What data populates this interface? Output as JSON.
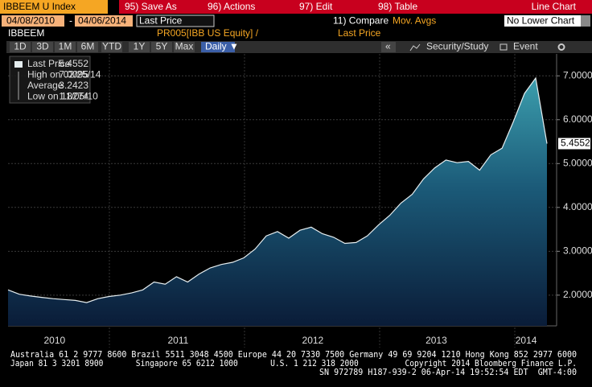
{
  "toolbar": {
    "security": "IBBEEM U Index",
    "buttons": [
      "95) Save As",
      "96) Actions",
      "97) Edit",
      "98) Table"
    ],
    "view": "Line Chart"
  },
  "settings": {
    "start_date": "04/08/2010",
    "date_separator": "-",
    "end_date": "04/06/2014",
    "field": "Last Price",
    "compare": "11) Compare",
    "moving_averages": "Mov. Avgs",
    "lower_chart": "No Lower Chart"
  },
  "info": {
    "ticker": "IBBEEM",
    "source": "PR005[IBB US Equity] /",
    "field": "Last Price"
  },
  "ranges": {
    "buttons": [
      "1D",
      "3D",
      "1M",
      "6M",
      "YTD",
      "1Y",
      "5Y",
      "Max"
    ],
    "frequency": "Daily ▼",
    "collapse": "«",
    "study": "Security/Study",
    "event": "Event"
  },
  "chart_data": {
    "type": "area",
    "legend": [
      {
        "label": "Last Price",
        "value": 5.4552
      },
      {
        "label": "High on 02/25/14",
        "value": 7.0095
      },
      {
        "label": "Average",
        "value": 3.2423
      },
      {
        "label": "Low on 11/05/10",
        "value": 1.8274
      }
    ],
    "categories": [
      null,
      null,
      null,
      null,
      "2010",
      null,
      null,
      null,
      null,
      null,
      null,
      null,
      null,
      null,
      null,
      "2011",
      null,
      null,
      null,
      null,
      null,
      null,
      null,
      null,
      null,
      null,
      null,
      "2012",
      null,
      null,
      null,
      null,
      null,
      null,
      null,
      null,
      null,
      null,
      "2013",
      null,
      null,
      null,
      null,
      null,
      null,
      null,
      "2014",
      null,
      null
    ],
    "series": [
      {
        "name": "Last Price",
        "color": "#e6eef0",
        "values": [
          2.12,
          2.02,
          1.98,
          1.95,
          1.92,
          1.9,
          1.88,
          1.83,
          1.92,
          1.97,
          2.0,
          2.05,
          2.12,
          2.3,
          2.25,
          2.42,
          2.3,
          2.48,
          2.62,
          2.7,
          2.75,
          2.85,
          3.05,
          3.35,
          3.45,
          3.3,
          3.48,
          3.55,
          3.4,
          3.32,
          3.18,
          3.2,
          3.35,
          3.6,
          3.82,
          4.1,
          4.3,
          4.65,
          4.9,
          5.08,
          5.02,
          5.05,
          4.85,
          5.2,
          5.35,
          5.95,
          6.6,
          6.95,
          5.4552
        ]
      }
    ],
    "ylim": [
      1.3,
      7.5
    ],
    "yticks": [
      {
        "value": 2,
        "label": "2.0000"
      },
      {
        "value": 3,
        "label": "3.0000"
      },
      {
        "value": 4,
        "label": "4.0000"
      },
      {
        "value": 5,
        "label": "5.0000"
      },
      {
        "value": 6,
        "label": "6.0000"
      },
      {
        "value": 7,
        "label": "7.0000"
      }
    ],
    "grid": true
  },
  "footer": [
    "Australia 61 2 9777 8600 Brazil 5511 3048 4500 Europe 44 20 7330 7500 Germany 49 69 9204 1210 Hong Kong 852 2977 6000",
    "Japan 81 3 3201 8900       Singapore 65 6212 1000       U.S. 1 212 318 2000          Copyright 2014 Bloomberg Finance L.P.",
    "SN 972789 H187-939-2 06-Apr-14 19:52:54 EDT  GMT-4:00"
  ]
}
